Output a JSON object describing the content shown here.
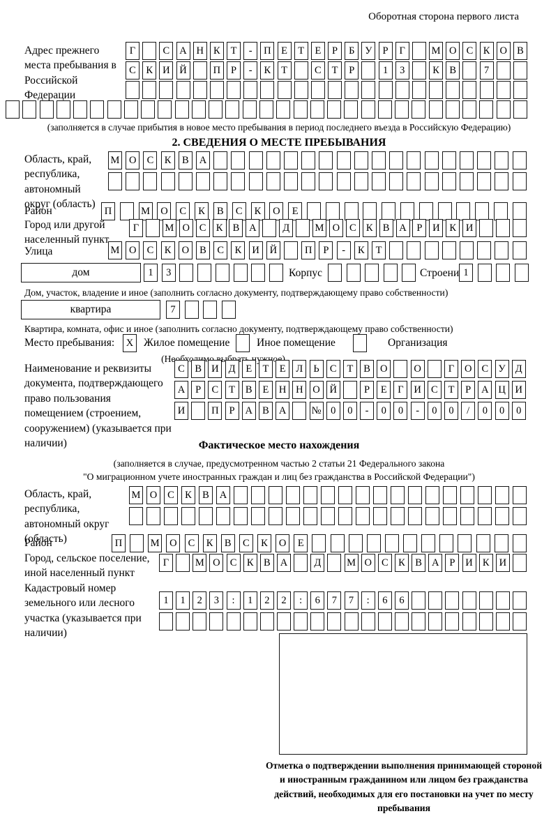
{
  "page": {
    "title": "Оборотная сторона первого листа"
  },
  "prev_address": {
    "label": "Адрес прежнего места пребывания в Российской Федерации",
    "rows": [
      [
        "Г",
        "",
        "С",
        "А",
        "Н",
        "К",
        "Т",
        "-",
        "П",
        "Е",
        "Т",
        "Е",
        "Р",
        "Б",
        "У",
        "Р",
        "Г",
        "",
        "М",
        "О",
        "С",
        "К",
        "О",
        "В"
      ],
      [
        "С",
        "К",
        "И",
        "Й",
        "",
        "П",
        "Р",
        "-",
        "К",
        "Т",
        "",
        "С",
        "Т",
        "Р",
        "",
        "1",
        "3",
        "",
        "К",
        "В",
        "",
        "7",
        "",
        ""
      ],
      [
        "",
        "",
        "",
        "",
        "",
        "",
        "",
        "",
        "",
        "",
        "",
        "",
        "",
        "",
        "",
        "",
        "",
        "",
        "",
        "",
        "",
        "",
        "",
        ""
      ]
    ],
    "row_full": [
      "",
      "",
      "",
      "",
      "",
      "",
      "",
      "",
      "",
      "",
      "",
      "",
      "",
      "",
      "",
      "",
      "",
      "",
      "",
      "",
      "",
      "",
      "",
      "",
      "",
      "",
      "",
      "",
      "",
      "",
      ""
    ],
    "note": "(заполняется в случае прибытия в новое место пребывания в период последнего въезда в Российскую Федерацию)"
  },
  "section2": {
    "title": "2. СВЕДЕНИЯ О МЕСТЕ ПРЕБЫВАНИЯ",
    "oblast": {
      "label": "Область, край, республика, автономный округ (область)",
      "rows": [
        [
          "М",
          "О",
          "С",
          "К",
          "В",
          "А",
          "",
          "",
          "",
          "",
          "",
          "",
          "",
          "",
          "",
          "",
          "",
          "",
          "",
          "",
          "",
          "",
          "",
          ""
        ],
        [
          "",
          "",
          "",
          "",
          "",
          "",
          "",
          "",
          "",
          "",
          "",
          "",
          "",
          "",
          "",
          "",
          "",
          "",
          "",
          "",
          "",
          "",
          "",
          ""
        ]
      ]
    },
    "raion": {
      "label": "Район",
      "row": [
        "П",
        "",
        "М",
        "О",
        "С",
        "К",
        "В",
        "С",
        "К",
        "О",
        "Е",
        "",
        "",
        "",
        "",
        "",
        "",
        "",
        "",
        "",
        "",
        "",
        ""
      ]
    },
    "gorod": {
      "label": "Город или другой населенный пункт",
      "row": [
        "Г",
        "",
        "М",
        "О",
        "С",
        "К",
        "В",
        "А",
        "",
        "Д",
        "",
        "М",
        "О",
        "С",
        "К",
        "В",
        "А",
        "Р",
        "И",
        "К",
        "И",
        "",
        "",
        ""
      ]
    },
    "ulitsa": {
      "label": "Улица",
      "row": [
        "М",
        "О",
        "С",
        "К",
        "О",
        "В",
        "С",
        "К",
        "И",
        "Й",
        "",
        "П",
        "Р",
        "-",
        "К",
        "Т",
        "",
        "",
        "",
        "",
        "",
        "",
        "",
        ""
      ]
    },
    "dom": {
      "box_label": "дом",
      "cells": [
        "1",
        "3",
        "",
        "",
        "",
        "",
        "",
        ""
      ],
      "korpus_label": "Корпус",
      "korpus_cells": [
        "",
        "",
        "",
        "",
        ""
      ],
      "stroenie_label": "Строение",
      "stroenie_cells": [
        "1",
        "",
        "",
        ""
      ],
      "note": "Дом, участок, владение и иное (заполнить согласно документу, подтверждающему право собственности)"
    },
    "kvartira": {
      "box_label": "квартира",
      "cells": [
        "7",
        "",
        "",
        ""
      ],
      "note": "Квартира, комната, офис и иное (заполнить согласно документу, подтверждающему право собственности)"
    },
    "mesto": {
      "label": "Место пребывания:",
      "zhiloe_value": "X",
      "zhiloe_label": "Жилое помещение",
      "inoe_value": "",
      "inoe_label": "Иное помещение",
      "org_value": "",
      "org_label": "Организация",
      "note": "(Необходимо выбрать нужное)"
    },
    "doc": {
      "label": "Наименование и реквизиты документа, подтверждающего право пользования помещением (строением, сооружением) (указывается при наличии)",
      "rows": [
        [
          "С",
          "В",
          "И",
          "Д",
          "Е",
          "Т",
          "Е",
          "Л",
          "Ь",
          "С",
          "Т",
          "В",
          "О",
          "",
          "О",
          "",
          "Г",
          "О",
          "С",
          "У",
          "Д"
        ],
        [
          "А",
          "Р",
          "С",
          "Т",
          "В",
          "Е",
          "Н",
          "Н",
          "О",
          "Й",
          "",
          "Р",
          "Е",
          "Г",
          "И",
          "С",
          "Т",
          "Р",
          "А",
          "Ц",
          "И"
        ],
        [
          "И",
          "",
          "П",
          "Р",
          "А",
          "В",
          "А",
          "",
          "№",
          "0",
          "0",
          "-",
          "0",
          "0",
          "-",
          "0",
          "0",
          "/",
          "0",
          "0",
          "0"
        ]
      ]
    }
  },
  "fact": {
    "title": "Фактическое место нахождения",
    "note1": "(заполняется в случае, предусмотренном частью 2 статьи 21 Федерального закона",
    "note2": "\"О миграционном учете иностранных граждан и лиц без гражданства в Российской Федерации\")",
    "oblast": {
      "label": "Область, край, республика, автономный округ (область)",
      "rows": [
        [
          "М",
          "О",
          "С",
          "К",
          "В",
          "А",
          "",
          "",
          "",
          "",
          "",
          "",
          "",
          "",
          "",
          "",
          "",
          "",
          "",
          "",
          "",
          "",
          ""
        ],
        [
          "",
          "",
          "",
          "",
          "",
          "",
          "",
          "",
          "",
          "",
          "",
          "",
          "",
          "",
          "",
          "",
          "",
          "",
          "",
          "",
          "",
          "",
          ""
        ]
      ]
    },
    "raion": {
      "label": "Район",
      "row": [
        "П",
        "",
        "М",
        "О",
        "С",
        "К",
        "В",
        "С",
        "К",
        "О",
        "Е",
        "",
        "",
        "",
        "",
        "",
        "",
        "",
        "",
        "",
        "",
        "",
        ""
      ]
    },
    "gorod": {
      "label": "Город, сельское поселение, иной населенный пункт",
      "row": [
        "Г",
        "",
        "М",
        "О",
        "С",
        "К",
        "В",
        "А",
        "",
        "Д",
        "",
        "М",
        "О",
        "С",
        "К",
        "В",
        "А",
        "Р",
        "И",
        "К",
        "И",
        ""
      ]
    },
    "kadastr": {
      "label": "Кадастровый номер земельного или лесного участка (указывается при наличии)",
      "rows": [
        [
          "1",
          "1",
          "2",
          "3",
          ":",
          "1",
          "2",
          "2",
          ":",
          "6",
          "7",
          "7",
          ":",
          "6",
          "6",
          "",
          "",
          "",
          "",
          "",
          "",
          ""
        ],
        [
          "",
          "",
          "",
          "",
          "",
          "",
          "",
          "",
          "",
          "",
          "",
          "",
          "",
          "",
          "",
          "",
          "",
          "",
          "",
          "",
          "",
          ""
        ]
      ]
    },
    "stamp_caption": "Отметка о подтверждении выполнения принимающей стороной и иностранным гражданином или лицом без гражданства действий, необходимых для его постановки на учет по месту пребывания"
  }
}
